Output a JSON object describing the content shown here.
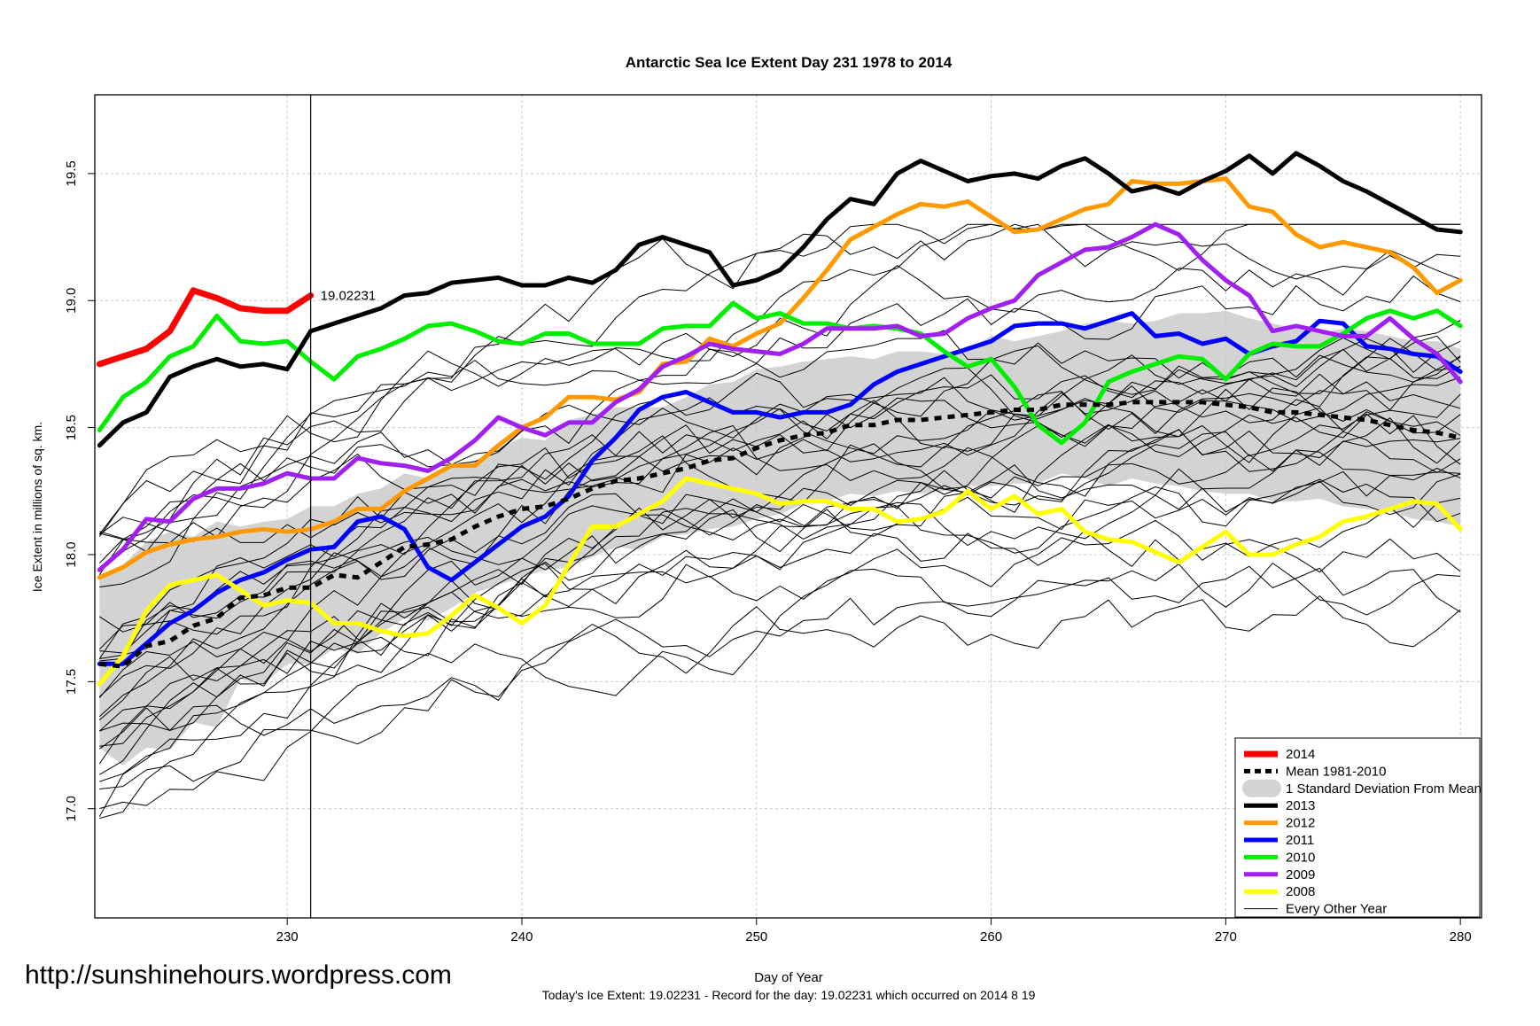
{
  "watermark": "http://sunshinehours.wordpress.com",
  "chart_data": {
    "type": "line",
    "title": "Antarctic Sea Ice Extent Day 231 1978 to 2014",
    "xlabel": "Day of Year",
    "ylabel": "Ice Extent in millions of sq. km.",
    "footer": "Today's Ice Extent: 19.02231  - Record for the day: 19.02231 which occurred on 2014 8 19",
    "xlim": [
      221.8,
      280.9
    ],
    "ylim": [
      16.57,
      19.81
    ],
    "x_ticks": [
      230,
      240,
      250,
      260,
      270,
      280
    ],
    "y_ticks": [
      17.0,
      17.5,
      18.0,
      18.5,
      19.0,
      19.5
    ],
    "y_tick_labels": [
      "17.0",
      "17.5",
      "18.0",
      "18.5",
      "19.0",
      "19.5"
    ],
    "grid": true,
    "current_day": 231,
    "current_value_label": "19.02231",
    "legend_position": "bottom-right",
    "legend": [
      {
        "label": "2014",
        "color": "#ff0000",
        "style": "thick"
      },
      {
        "label": "Mean 1981-2010",
        "color": "#000000",
        "style": "dashed"
      },
      {
        "label": "1 Standard Deviation From Mean",
        "color": "#d3d3d3",
        "style": "band"
      },
      {
        "label": "2013",
        "color": "#000000",
        "style": "thick"
      },
      {
        "label": "2012",
        "color": "#ff9900",
        "style": "thick"
      },
      {
        "label": "2011",
        "color": "#0000ff",
        "style": "thick"
      },
      {
        "label": "2010",
        "color": "#00ee00",
        "style": "thick"
      },
      {
        "label": "2009",
        "color": "#a020f0",
        "style": "thick"
      },
      {
        "label": "2008",
        "color": "#ffff00",
        "style": "thick"
      },
      {
        "label": "Every Other Year",
        "color": "#000000",
        "style": "thin"
      }
    ],
    "series": [
      {
        "name": "2014",
        "color": "#ff0000",
        "width": 7,
        "x": [
          222,
          223,
          224,
          225,
          226,
          227,
          228,
          229,
          230,
          231
        ],
        "y": [
          18.75,
          18.78,
          18.81,
          18.88,
          19.04,
          19.01,
          18.97,
          18.96,
          18.96,
          19.02
        ]
      },
      {
        "name": "2013",
        "color": "#000000",
        "width": 5,
        "x": [
          222,
          223,
          224,
          225,
          226,
          227,
          228,
          229,
          230,
          231,
          232,
          233,
          234,
          235,
          236,
          237,
          238,
          239,
          240,
          241,
          242,
          243,
          244,
          245,
          246,
          247,
          248,
          249,
          250,
          251,
          252,
          253,
          254,
          255,
          256,
          257,
          258,
          259,
          260,
          261,
          262,
          263,
          264,
          265,
          266,
          267,
          268,
          269,
          270,
          271,
          272,
          273,
          274,
          275,
          276,
          277,
          278,
          279,
          280
        ],
        "y": [
          18.43,
          18.52,
          18.56,
          18.7,
          18.74,
          18.77,
          18.74,
          18.75,
          18.73,
          18.88,
          18.91,
          18.94,
          18.97,
          19.02,
          19.03,
          19.07,
          19.08,
          19.09,
          19.06,
          19.06,
          19.09,
          19.07,
          19.12,
          19.22,
          19.25,
          19.22,
          19.19,
          19.06,
          19.08,
          19.12,
          19.21,
          19.32,
          19.4,
          19.38,
          19.5,
          19.55,
          19.51,
          19.47,
          19.49,
          19.5,
          19.48,
          19.53,
          19.56,
          19.5,
          19.43,
          19.45,
          19.42,
          19.47,
          19.51,
          19.57,
          19.5,
          19.58,
          19.53,
          19.47,
          19.43,
          19.38,
          19.33,
          19.28,
          19.27
        ]
      },
      {
        "name": "2012",
        "color": "#ff9900",
        "width": 5,
        "x": [
          222,
          223,
          224,
          225,
          226,
          227,
          228,
          229,
          230,
          231,
          232,
          233,
          234,
          235,
          236,
          237,
          238,
          239,
          240,
          241,
          242,
          243,
          244,
          245,
          246,
          247,
          248,
          249,
          250,
          251,
          252,
          253,
          254,
          255,
          256,
          257,
          258,
          259,
          260,
          261,
          262,
          263,
          264,
          265,
          266,
          267,
          268,
          269,
          270,
          271,
          272,
          273,
          274,
          275,
          276,
          277,
          278,
          279,
          280
        ],
        "y": [
          17.91,
          17.95,
          18.01,
          18.04,
          18.06,
          18.07,
          18.09,
          18.1,
          18.09,
          18.1,
          18.13,
          18.18,
          18.18,
          18.25,
          18.3,
          18.35,
          18.35,
          18.43,
          18.5,
          18.54,
          18.62,
          18.62,
          18.61,
          18.64,
          18.75,
          18.76,
          18.85,
          18.82,
          18.87,
          18.91,
          19.01,
          19.12,
          19.24,
          19.29,
          19.34,
          19.38,
          19.37,
          19.39,
          19.33,
          19.27,
          19.28,
          19.32,
          19.36,
          19.38,
          19.47,
          19.46,
          19.46,
          19.47,
          19.48,
          19.37,
          19.35,
          19.26,
          19.21,
          19.23,
          19.21,
          19.19,
          19.13,
          19.03,
          19.08
        ]
      },
      {
        "name": "2011",
        "color": "#0000ff",
        "width": 5,
        "x": [
          222,
          223,
          224,
          225,
          226,
          227,
          228,
          229,
          230,
          231,
          232,
          233,
          234,
          235,
          236,
          237,
          238,
          239,
          240,
          241,
          242,
          243,
          244,
          245,
          246,
          247,
          248,
          249,
          250,
          251,
          252,
          253,
          254,
          255,
          256,
          257,
          258,
          259,
          260,
          261,
          262,
          263,
          264,
          265,
          266,
          267,
          268,
          269,
          270,
          271,
          272,
          273,
          274,
          275,
          276,
          277,
          278,
          279,
          280
        ],
        "y": [
          17.57,
          17.57,
          17.65,
          17.73,
          17.78,
          17.85,
          17.9,
          17.93,
          17.98,
          18.02,
          18.03,
          18.13,
          18.15,
          18.1,
          17.95,
          17.9,
          17.97,
          18.04,
          18.11,
          18.15,
          18.23,
          18.37,
          18.46,
          18.57,
          18.62,
          18.64,
          18.6,
          18.56,
          18.56,
          18.54,
          18.56,
          18.56,
          18.59,
          18.67,
          18.72,
          18.75,
          18.78,
          18.81,
          18.84,
          18.9,
          18.91,
          18.91,
          18.89,
          18.92,
          18.95,
          18.86,
          18.87,
          18.83,
          18.85,
          18.79,
          18.82,
          18.84,
          18.92,
          18.91,
          18.82,
          18.81,
          18.79,
          18.78,
          18.72
        ]
      },
      {
        "name": "2010",
        "color": "#00ee00",
        "width": 5,
        "x": [
          222,
          223,
          224,
          225,
          226,
          227,
          228,
          229,
          230,
          231,
          232,
          233,
          234,
          235,
          236,
          237,
          238,
          239,
          240,
          241,
          242,
          243,
          244,
          245,
          246,
          247,
          248,
          249,
          250,
          251,
          252,
          253,
          254,
          255,
          256,
          257,
          258,
          259,
          260,
          261,
          262,
          263,
          264,
          265,
          266,
          267,
          268,
          269,
          270,
          271,
          272,
          273,
          274,
          275,
          276,
          277,
          278,
          279,
          280
        ],
        "y": [
          18.49,
          18.62,
          18.68,
          18.78,
          18.82,
          18.94,
          18.84,
          18.83,
          18.84,
          18.76,
          18.69,
          18.78,
          18.81,
          18.85,
          18.9,
          18.91,
          18.88,
          18.84,
          18.83,
          18.87,
          18.87,
          18.83,
          18.83,
          18.83,
          18.89,
          18.9,
          18.9,
          18.99,
          18.93,
          18.95,
          18.91,
          18.91,
          18.89,
          18.9,
          18.89,
          18.87,
          18.8,
          18.74,
          18.77,
          18.66,
          18.51,
          18.44,
          18.52,
          18.68,
          18.72,
          18.75,
          18.78,
          18.77,
          18.69,
          18.79,
          18.83,
          18.82,
          18.82,
          18.87,
          18.93,
          18.96,
          18.93,
          18.96,
          18.9
        ]
      },
      {
        "name": "2009",
        "color": "#a020f0",
        "width": 5,
        "x": [
          222,
          223,
          224,
          225,
          226,
          227,
          228,
          229,
          230,
          231,
          232,
          233,
          234,
          235,
          236,
          237,
          238,
          239,
          240,
          241,
          242,
          243,
          244,
          245,
          246,
          247,
          248,
          249,
          250,
          251,
          252,
          253,
          254,
          255,
          256,
          257,
          258,
          259,
          260,
          261,
          262,
          263,
          264,
          265,
          266,
          267,
          268,
          269,
          270,
          271,
          272,
          273,
          274,
          275,
          276,
          277,
          278,
          279,
          280
        ],
        "y": [
          17.94,
          18.02,
          18.14,
          18.13,
          18.22,
          18.26,
          18.26,
          18.28,
          18.32,
          18.3,
          18.3,
          18.38,
          18.36,
          18.35,
          18.33,
          18.38,
          18.45,
          18.54,
          18.5,
          18.47,
          18.52,
          18.52,
          18.6,
          18.65,
          18.74,
          18.78,
          18.83,
          18.81,
          18.8,
          18.79,
          18.83,
          18.89,
          18.89,
          18.89,
          18.9,
          18.86,
          18.87,
          18.93,
          18.97,
          19.0,
          19.1,
          19.15,
          19.2,
          19.21,
          19.25,
          19.3,
          19.26,
          19.16,
          19.08,
          19.02,
          18.88,
          18.9,
          18.88,
          18.86,
          18.86,
          18.93,
          18.85,
          18.79,
          18.68
        ]
      },
      {
        "name": "2008",
        "color": "#ffff00",
        "width": 5,
        "x": [
          222,
          223,
          224,
          225,
          226,
          227,
          228,
          229,
          230,
          231,
          232,
          233,
          234,
          235,
          236,
          237,
          238,
          239,
          240,
          241,
          242,
          243,
          244,
          245,
          246,
          247,
          248,
          249,
          250,
          251,
          252,
          253,
          254,
          255,
          256,
          257,
          258,
          259,
          260,
          261,
          262,
          263,
          264,
          265,
          266,
          267,
          268,
          269,
          270,
          271,
          272,
          273,
          274,
          275,
          276,
          277,
          278,
          279,
          280
        ],
        "y": [
          17.49,
          17.6,
          17.78,
          17.88,
          17.9,
          17.92,
          17.86,
          17.8,
          17.82,
          17.81,
          17.73,
          17.73,
          17.7,
          17.68,
          17.69,
          17.76,
          17.84,
          17.79,
          17.73,
          17.8,
          17.96,
          18.11,
          18.11,
          18.16,
          18.21,
          18.3,
          18.28,
          18.26,
          18.24,
          18.2,
          18.21,
          18.21,
          18.18,
          18.18,
          18.13,
          18.14,
          18.17,
          18.25,
          18.18,
          18.23,
          18.16,
          18.18,
          18.09,
          18.06,
          18.05,
          18.01,
          17.97,
          18.03,
          18.09,
          18.0,
          18.0,
          18.04,
          18.07,
          18.13,
          18.15,
          18.18,
          18.21,
          18.2,
          18.1
        ]
      },
      {
        "name": "Mean 1981-2010",
        "color": "#000000",
        "width": 5,
        "dash": true,
        "x": [
          222,
          223,
          224,
          225,
          226,
          227,
          228,
          229,
          230,
          231,
          232,
          233,
          234,
          235,
          236,
          237,
          238,
          239,
          240,
          241,
          242,
          243,
          244,
          245,
          246,
          247,
          248,
          249,
          250,
          251,
          252,
          253,
          254,
          255,
          256,
          257,
          258,
          259,
          260,
          261,
          262,
          263,
          264,
          265,
          266,
          267,
          268,
          269,
          270,
          271,
          272,
          273,
          274,
          275,
          276,
          277,
          278,
          279,
          280
        ],
        "y": [
          17.57,
          17.56,
          17.64,
          17.66,
          17.72,
          17.75,
          17.83,
          17.84,
          17.87,
          17.87,
          17.92,
          17.91,
          17.97,
          18.03,
          18.04,
          18.06,
          18.11,
          18.15,
          18.18,
          18.19,
          18.22,
          18.26,
          18.29,
          18.3,
          18.32,
          18.34,
          18.37,
          18.38,
          18.42,
          18.45,
          18.47,
          18.48,
          18.51,
          18.51,
          18.53,
          18.53,
          18.54,
          18.55,
          18.56,
          18.57,
          18.57,
          18.59,
          18.59,
          18.59,
          18.6,
          18.6,
          18.6,
          18.6,
          18.59,
          18.58,
          18.56,
          18.56,
          18.55,
          18.54,
          18.53,
          18.51,
          18.49,
          18.48,
          18.46
        ]
      }
    ],
    "std_band": {
      "x": [
        222,
        223,
        224,
        225,
        226,
        227,
        228,
        229,
        230,
        231,
        232,
        233,
        234,
        235,
        236,
        237,
        238,
        239,
        240,
        241,
        242,
        243,
        244,
        245,
        246,
        247,
        248,
        249,
        250,
        251,
        252,
        253,
        254,
        255,
        256,
        257,
        258,
        259,
        260,
        261,
        262,
        263,
        264,
        265,
        266,
        267,
        268,
        269,
        270,
        271,
        272,
        273,
        274,
        275,
        276,
        277,
        278,
        279,
        280
      ],
      "upper": [
        17.92,
        17.96,
        18.05,
        18.09,
        18.07,
        18.13,
        18.11,
        18.13,
        18.14,
        18.19,
        18.19,
        18.24,
        18.26,
        18.32,
        18.3,
        18.34,
        18.37,
        18.42,
        18.46,
        18.45,
        18.53,
        18.55,
        18.58,
        18.58,
        18.58,
        18.62,
        18.67,
        18.68,
        18.73,
        18.74,
        18.76,
        18.77,
        18.78,
        18.77,
        18.8,
        18.8,
        18.79,
        18.81,
        18.86,
        18.84,
        18.86,
        18.88,
        18.91,
        18.92,
        18.91,
        18.92,
        18.95,
        18.95,
        18.96,
        18.93,
        18.91,
        18.89,
        18.87,
        18.89,
        18.88,
        18.86,
        18.84,
        18.84,
        18.81
      ],
      "lower": [
        17.24,
        17.17,
        17.24,
        17.23,
        17.34,
        17.32,
        17.51,
        17.49,
        17.57,
        17.57,
        17.63,
        17.61,
        17.69,
        17.75,
        17.74,
        17.79,
        17.85,
        17.88,
        17.91,
        17.94,
        17.95,
        17.99,
        18.03,
        18.02,
        18.07,
        18.08,
        18.1,
        18.11,
        18.14,
        18.16,
        18.2,
        18.21,
        18.24,
        18.23,
        18.25,
        18.24,
        18.25,
        18.27,
        18.27,
        18.28,
        18.28,
        18.32,
        18.3,
        18.27,
        18.3,
        18.28,
        18.27,
        18.25,
        18.24,
        18.24,
        18.21,
        18.21,
        18.22,
        18.19,
        18.18,
        18.17,
        18.14,
        18.13,
        18.11
      ]
    }
  }
}
